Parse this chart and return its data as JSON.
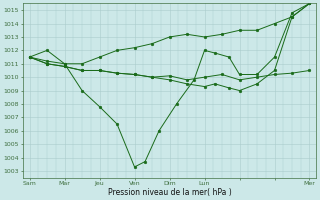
{
  "background_color": "#cce8e8",
  "grid_color": "#aacccc",
  "line_color": "#1a6b1a",
  "xlabel": "Pression niveau de la mer( hPa )",
  "ylim": [
    1002.5,
    1015.5
  ],
  "yticks": [
    1003,
    1004,
    1005,
    1006,
    1007,
    1008,
    1009,
    1010,
    1011,
    1012,
    1013,
    1014,
    1015
  ],
  "xtick_positions": [
    0,
    1,
    2,
    3,
    4,
    5,
    6,
    7,
    8
  ],
  "xtick_labels": [
    "Sam",
    "Mar",
    "Jeu",
    "Ven",
    "Dim",
    "Lun",
    "",
    "",
    "Mer"
  ],
  "series": {
    "dip": {
      "x": [
        0.0,
        0.5,
        1.0,
        1.5,
        2.0,
        2.5,
        3.0,
        3.3,
        3.7,
        4.2,
        4.7,
        5.0,
        5.3,
        5.7,
        6.0,
        6.5,
        7.0,
        7.5,
        8.0
      ],
      "y": [
        1011.5,
        1012.0,
        1011.0,
        1009.0,
        1007.8,
        1006.5,
        1003.3,
        1003.7,
        1006.0,
        1008.0,
        1009.8,
        1012.0,
        1011.8,
        1011.5,
        1010.2,
        1010.2,
        1011.5,
        1014.8,
        1015.5
      ]
    },
    "flat_low": {
      "x": [
        0.0,
        0.5,
        1.0,
        1.5,
        2.0,
        2.5,
        3.0,
        3.5,
        4.0,
        4.5,
        5.0,
        5.5,
        6.0,
        6.5,
        7.0,
        7.5,
        8.0
      ],
      "y": [
        1011.5,
        1011.0,
        1010.8,
        1010.5,
        1010.5,
        1010.3,
        1010.2,
        1010.0,
        1010.1,
        1009.8,
        1010.0,
        1010.2,
        1009.8,
        1010.0,
        1010.2,
        1010.3,
        1010.5
      ]
    },
    "rising": {
      "x": [
        0.0,
        0.5,
        1.0,
        1.5,
        2.0,
        2.5,
        3.0,
        3.5,
        4.0,
        4.5,
        5.0,
        5.5,
        6.0,
        6.5,
        7.0,
        7.5,
        8.0
      ],
      "y": [
        1011.5,
        1011.2,
        1011.0,
        1011.0,
        1011.5,
        1012.0,
        1012.2,
        1012.5,
        1013.0,
        1013.2,
        1013.0,
        1013.2,
        1013.5,
        1013.5,
        1014.0,
        1014.5,
        1015.5
      ]
    },
    "mid_low": {
      "x": [
        0.0,
        0.5,
        1.0,
        1.5,
        2.0,
        2.5,
        3.0,
        3.5,
        4.0,
        4.5,
        5.0,
        5.3,
        5.7,
        6.0,
        6.5,
        7.0,
        7.5,
        8.0
      ],
      "y": [
        1011.5,
        1011.0,
        1010.8,
        1010.5,
        1010.5,
        1010.3,
        1010.2,
        1010.0,
        1009.8,
        1009.5,
        1009.3,
        1009.5,
        1009.2,
        1009.0,
        1009.5,
        1010.5,
        1014.5,
        1015.5
      ]
    }
  },
  "figsize": [
    3.2,
    2.0
  ],
  "dpi": 100
}
